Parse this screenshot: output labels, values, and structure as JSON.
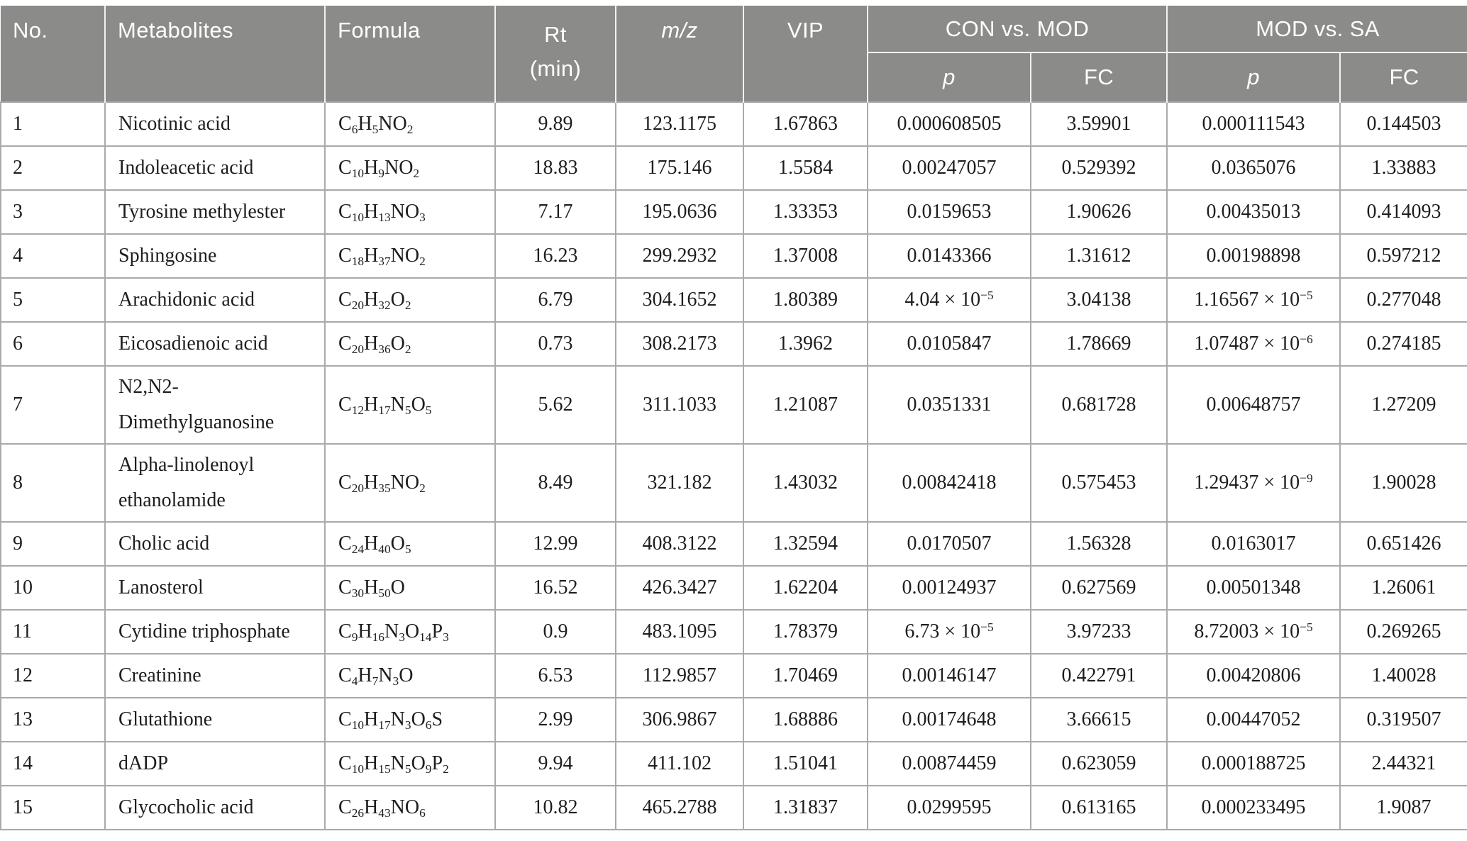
{
  "colors": {
    "header_bg": "#8b8b89",
    "header_text": "#ffffff",
    "body_text": "#1d1d1b",
    "border": "#aaaaaa"
  },
  "header": {
    "no": "No.",
    "metabolites": "Metabolites",
    "formula": "Formula",
    "rt_line1": "Rt",
    "rt_line2": "(min)",
    "mz": "m/z",
    "vip": "VIP",
    "group1": "CON vs. MOD",
    "group2": "MOD vs. SA",
    "p": "p",
    "fc": "FC"
  },
  "rows": [
    {
      "no": "1",
      "metabolite": "Nicotinic acid",
      "formula": "C6H5NO2",
      "rt": "9.89",
      "mz": "123.1175",
      "vip": "1.67863",
      "p1": "0.000608505",
      "fc1": "3.59901",
      "p2": "0.000111543",
      "fc2": "0.144503",
      "tall": false
    },
    {
      "no": "2",
      "metabolite": "Indoleacetic acid",
      "formula": "C10H9NO2",
      "rt": "18.83",
      "mz": "175.146",
      "vip": "1.5584",
      "p1": "0.00247057",
      "fc1": "0.529392",
      "p2": "0.0365076",
      "fc2": "1.33883",
      "tall": false
    },
    {
      "no": "3",
      "metabolite": "Tyrosine methylester",
      "formula": "C10H13NO3",
      "rt": "7.17",
      "mz": "195.0636",
      "vip": "1.33353",
      "p1": "0.0159653",
      "fc1": "1.90626",
      "p2": "0.00435013",
      "fc2": "0.414093",
      "tall": false
    },
    {
      "no": "4",
      "metabolite": "Sphingosine",
      "formula": "C18H37NO2",
      "rt": "16.23",
      "mz": "299.2932",
      "vip": "1.37008",
      "p1": "0.0143366",
      "fc1": "1.31612",
      "p2": "0.00198898",
      "fc2": "0.597212",
      "tall": false
    },
    {
      "no": "5",
      "metabolite": "Arachidonic acid",
      "formula": "C20H32O2",
      "rt": "6.79",
      "mz": "304.1652",
      "vip": "1.80389",
      "p1": "4.04 × 10^−5",
      "fc1": "3.04138",
      "p2": "1.16567 × 10^−5",
      "fc2": "0.277048",
      "tall": false
    },
    {
      "no": "6",
      "metabolite": "Eicosadienoic acid",
      "formula": "C20H36O2",
      "rt": "0.73",
      "mz": "308.2173",
      "vip": "1.3962",
      "p1": "0.0105847",
      "fc1": "1.78669",
      "p2": "1.07487 × 10^−6",
      "fc2": "0.274185",
      "tall": false
    },
    {
      "no": "7",
      "metabolite": "N2,N2-Dimethylguanosine",
      "formula": "C12H17N5O5",
      "rt": "5.62",
      "mz": "311.1033",
      "vip": "1.21087",
      "p1": "0.0351331",
      "fc1": "0.681728",
      "p2": "0.00648757",
      "fc2": "1.27209",
      "tall": true
    },
    {
      "no": "8",
      "metabolite": "Alpha-linolenoyl ethanolamide",
      "formula": "C20H35NO2",
      "rt": "8.49",
      "mz": "321.182",
      "vip": "1.43032",
      "p1": "0.00842418",
      "fc1": "0.575453",
      "p2": "1.29437 × 10^−9",
      "fc2": "1.90028",
      "tall": true
    },
    {
      "no": "9",
      "metabolite": "Cholic acid",
      "formula": "C24H40O5",
      "rt": "12.99",
      "mz": "408.3122",
      "vip": "1.32594",
      "p1": "0.0170507",
      "fc1": "1.56328",
      "p2": "0.0163017",
      "fc2": "0.651426",
      "tall": false
    },
    {
      "no": "10",
      "metabolite": "Lanosterol",
      "formula": "C30H50O",
      "rt": "16.52",
      "mz": "426.3427",
      "vip": "1.62204",
      "p1": "0.00124937",
      "fc1": "0.627569",
      "p2": "0.00501348",
      "fc2": "1.26061",
      "tall": false
    },
    {
      "no": "11",
      "metabolite": "Cytidine triphosphate",
      "formula": "C9H16N3O14P3",
      "rt": "0.9",
      "mz": "483.1095",
      "vip": "1.78379",
      "p1": "6.73 × 10^−5",
      "fc1": "3.97233",
      "p2": "8.72003 × 10^−5",
      "fc2": "0.269265",
      "tall": false
    },
    {
      "no": "12",
      "metabolite": "Creatinine",
      "formula": "C4H7N3O",
      "rt": "6.53",
      "mz": "112.9857",
      "vip": "1.70469",
      "p1": "0.00146147",
      "fc1": "0.422791",
      "p2": "0.00420806",
      "fc2": "1.40028",
      "tall": false
    },
    {
      "no": "13",
      "metabolite": "Glutathione",
      "formula": "C10H17N3O6S",
      "rt": "2.99",
      "mz": "306.9867",
      "vip": "1.68886",
      "p1": "0.00174648",
      "fc1": "3.66615",
      "p2": "0.00447052",
      "fc2": "0.319507",
      "tall": false
    },
    {
      "no": "14",
      "metabolite": "dADP",
      "formula": "C10H15N5O9P2",
      "rt": "9.94",
      "mz": "411.102",
      "vip": "1.51041",
      "p1": "0.00874459",
      "fc1": "0.623059",
      "p2": "0.000188725",
      "fc2": "2.44321",
      "tall": false
    },
    {
      "no": "15",
      "metabolite": "Glycocholic acid",
      "formula": "C26H43NO6",
      "rt": "10.82",
      "mz": "465.2788",
      "vip": "1.31837",
      "p1": "0.0299595",
      "fc1": "0.613165",
      "p2": "0.000233495",
      "fc2": "1.9087",
      "tall": false
    }
  ]
}
